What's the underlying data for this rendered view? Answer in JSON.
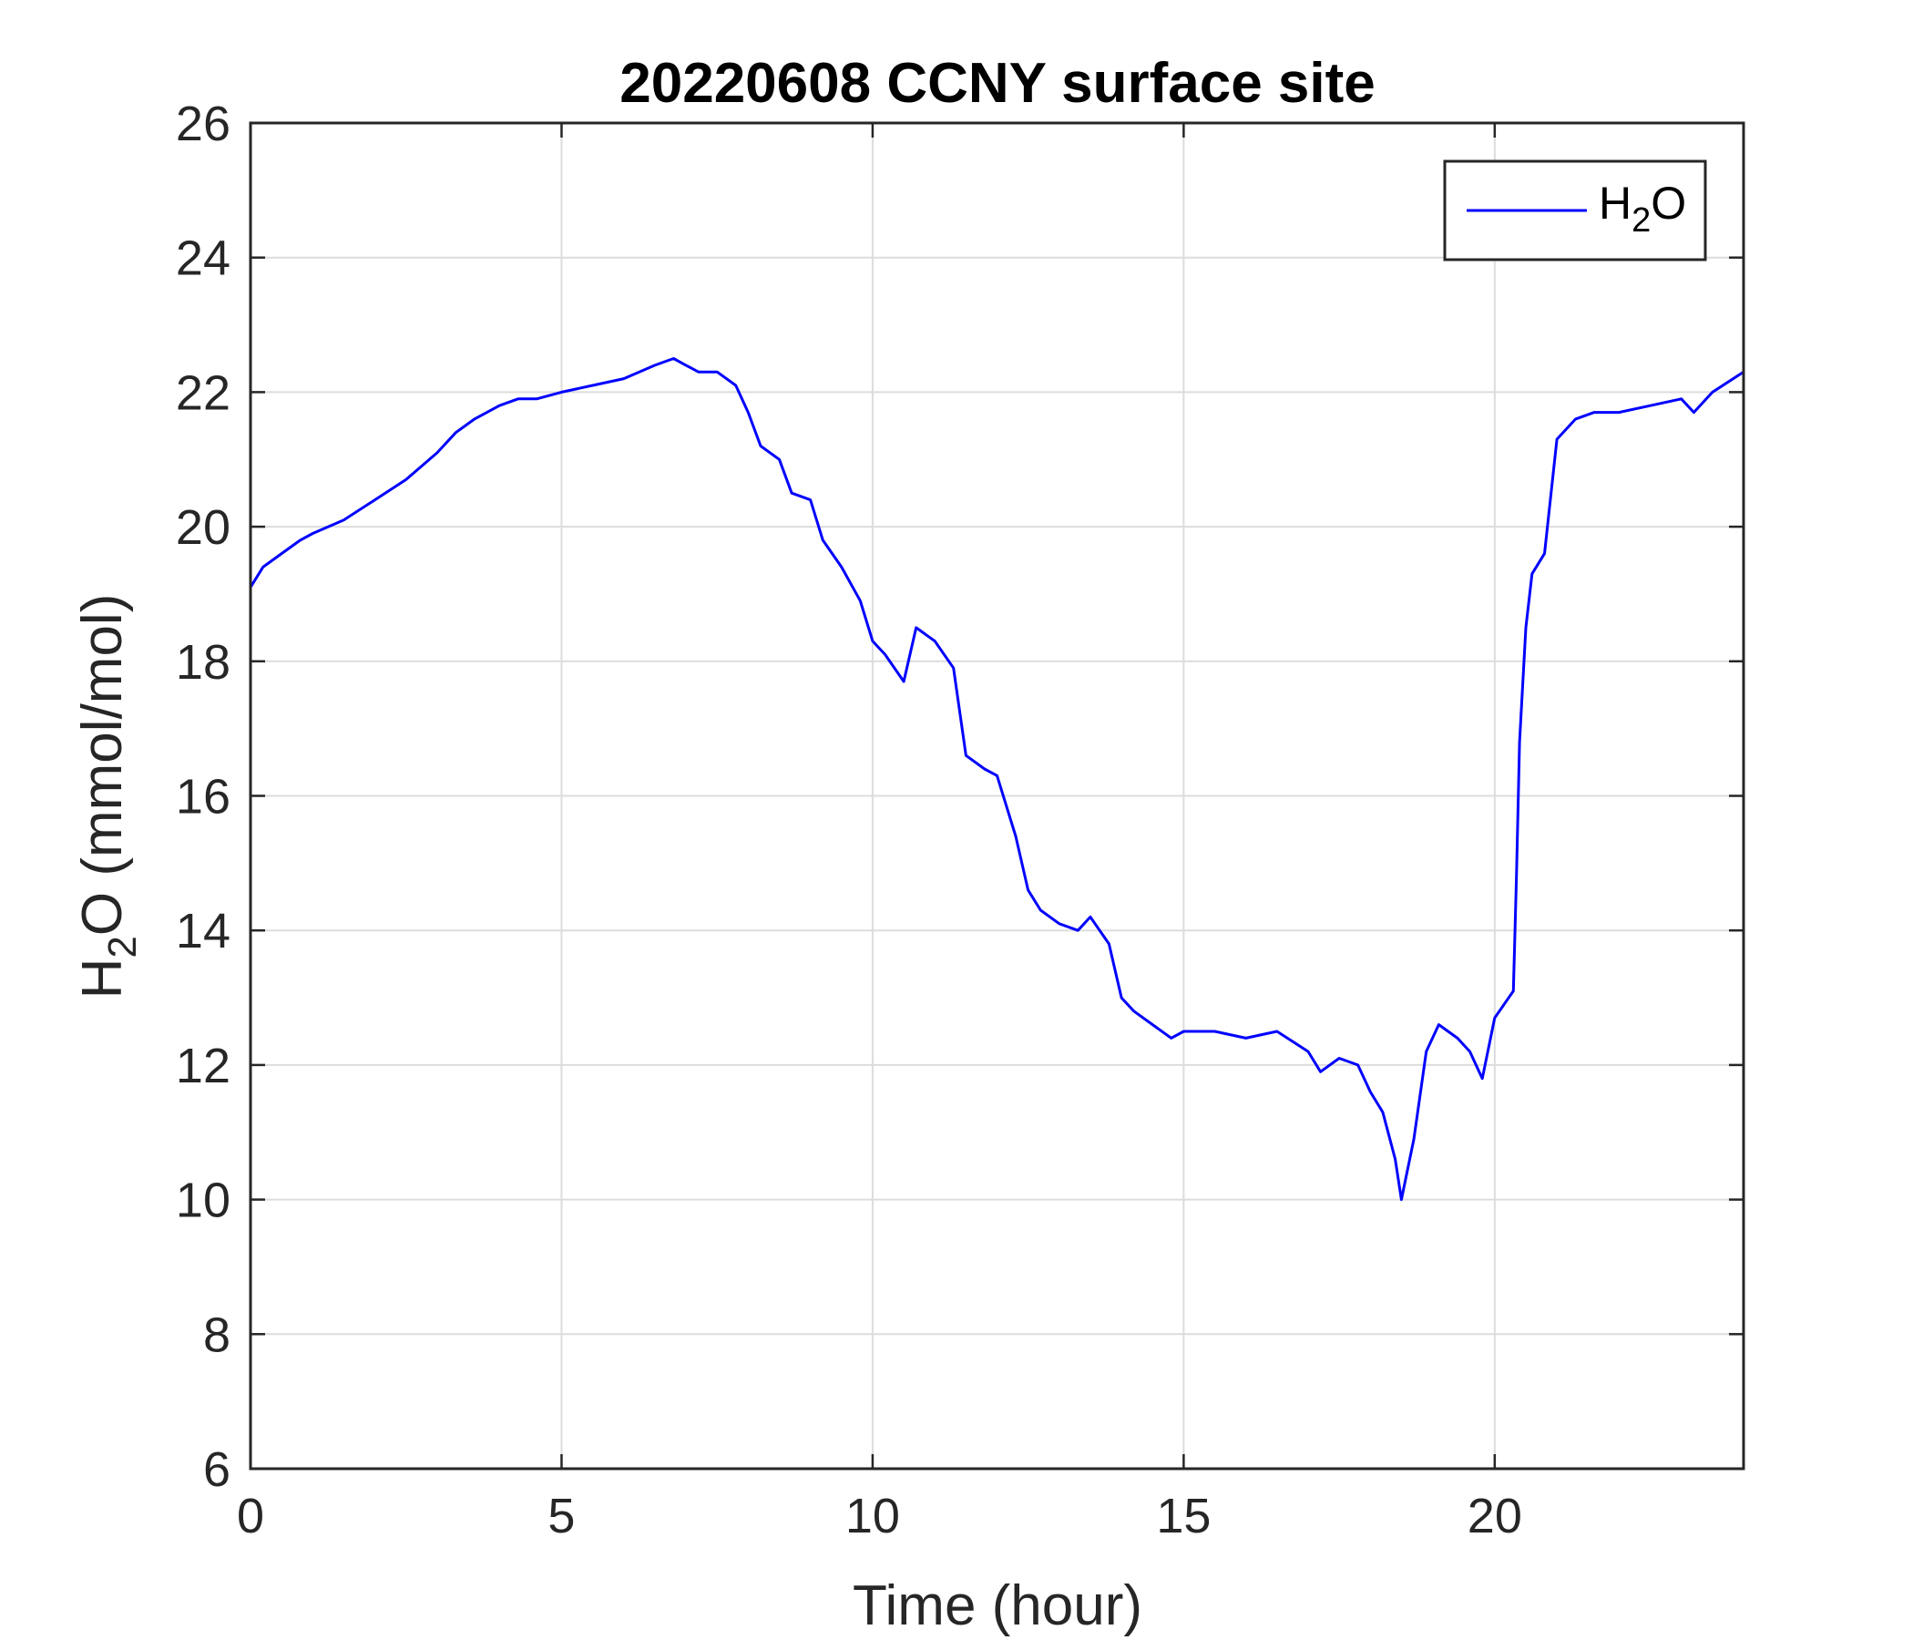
{
  "chart_data": {
    "type": "line",
    "title": "20220608 CCNY surface site",
    "xlabel": "Time (hour)",
    "ylabel": {
      "base": "H",
      "sub": "2",
      "rest": "O (mmol/mol)"
    },
    "xlim": [
      0,
      24
    ],
    "ylim": [
      6,
      26
    ],
    "xticks": [
      0,
      5,
      10,
      15,
      20
    ],
    "yticks": [
      6,
      8,
      10,
      12,
      14,
      16,
      18,
      20,
      22,
      24,
      26
    ],
    "grid": true,
    "legend": {
      "position": "top-right",
      "base": "H",
      "sub": "2",
      "rest": "O"
    },
    "series": [
      {
        "name": "H2O",
        "color": "#0000ff",
        "x": [
          0,
          0.2,
          0.5,
          0.8,
          1.0,
          1.5,
          2.0,
          2.5,
          3.0,
          3.3,
          3.6,
          4.0,
          4.3,
          4.6,
          5.0,
          5.5,
          6.0,
          6.5,
          6.8,
          7.0,
          7.2,
          7.5,
          7.8,
          8.0,
          8.2,
          8.5,
          8.7,
          9.0,
          9.2,
          9.5,
          9.8,
          10.0,
          10.2,
          10.5,
          10.7,
          11.0,
          11.3,
          11.5,
          11.8,
          12.0,
          12.3,
          12.5,
          12.7,
          13.0,
          13.3,
          13.5,
          13.8,
          14.0,
          14.2,
          14.5,
          14.8,
          15.0,
          15.5,
          16.0,
          16.5,
          17.0,
          17.2,
          17.5,
          17.8,
          18.0,
          18.2,
          18.4,
          18.5,
          18.7,
          18.9,
          19.1,
          19.4,
          19.6,
          19.8,
          20.0,
          20.3,
          20.35,
          20.4,
          20.5,
          20.6,
          20.8,
          21.0,
          21.3,
          21.6,
          22.0,
          22.5,
          23.0,
          23.2,
          23.5,
          24.0
        ],
        "y": [
          19.1,
          19.4,
          19.6,
          19.8,
          19.9,
          20.1,
          20.4,
          20.7,
          21.1,
          21.4,
          21.6,
          21.8,
          21.9,
          21.9,
          22.0,
          22.1,
          22.2,
          22.4,
          22.5,
          22.4,
          22.3,
          22.3,
          22.1,
          21.7,
          21.2,
          21.0,
          20.5,
          20.4,
          19.8,
          19.4,
          18.9,
          18.3,
          18.1,
          17.7,
          18.5,
          18.3,
          17.9,
          16.6,
          16.4,
          16.3,
          15.4,
          14.6,
          14.3,
          14.1,
          14.0,
          14.2,
          13.8,
          13.0,
          12.8,
          12.6,
          12.4,
          12.5,
          12.5,
          12.4,
          12.5,
          12.2,
          11.9,
          12.1,
          12.0,
          11.6,
          11.3,
          10.6,
          10.0,
          10.9,
          12.2,
          12.6,
          12.4,
          12.2,
          11.8,
          12.7,
          13.1,
          14.8,
          16.8,
          18.5,
          19.3,
          19.6,
          21.3,
          21.6,
          21.7,
          21.7,
          21.8,
          21.9,
          21.7,
          22.0,
          22.3
        ]
      }
    ]
  }
}
